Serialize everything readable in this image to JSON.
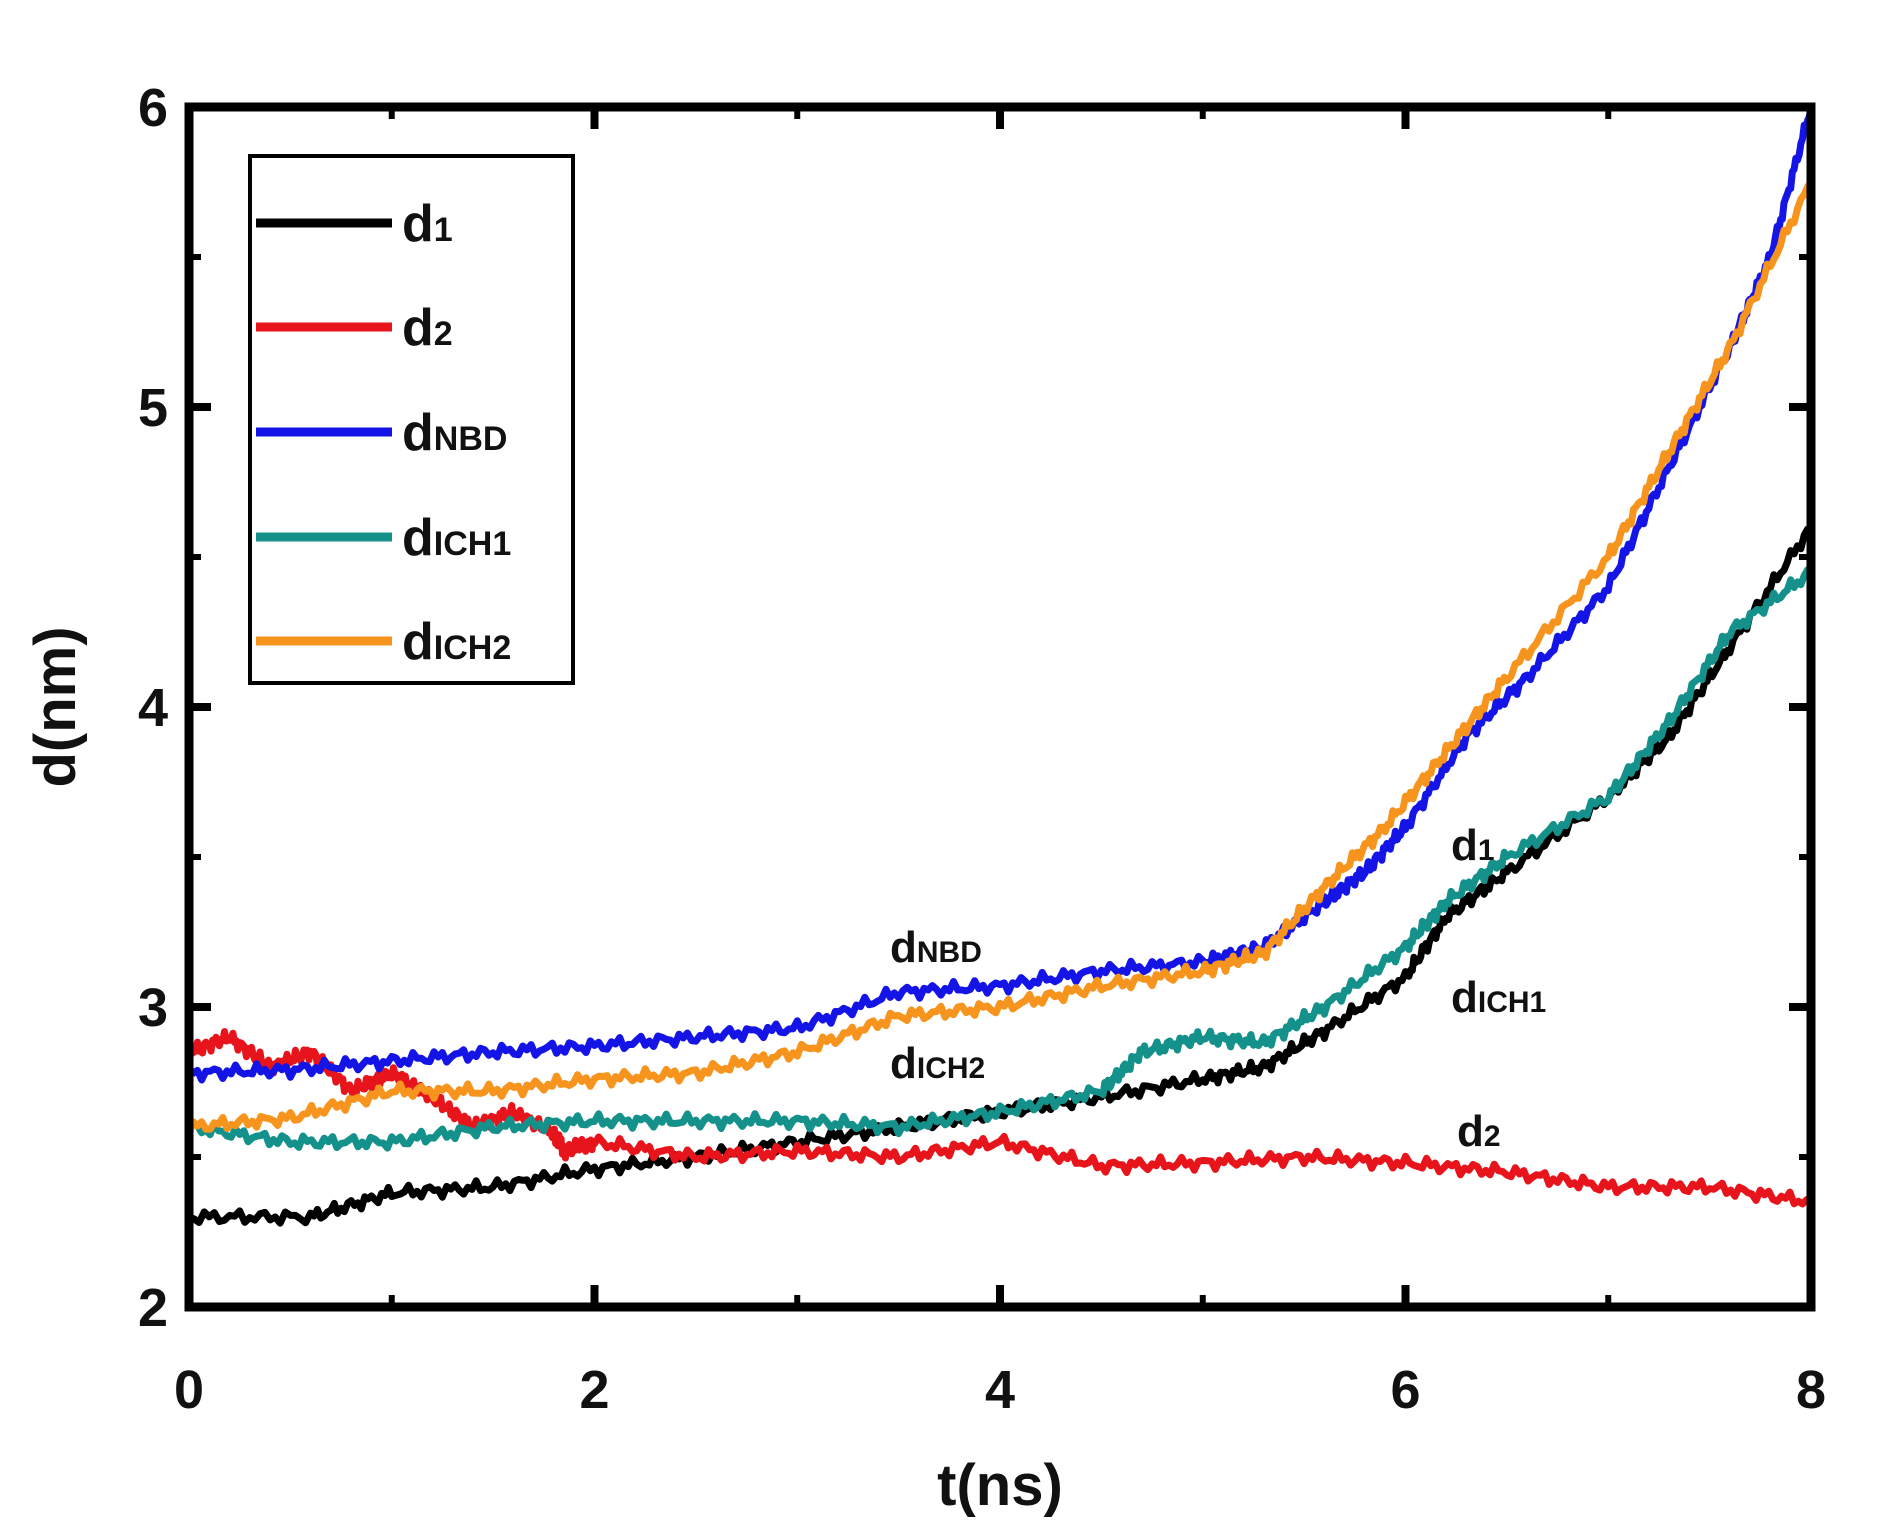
{
  "chart_data": {
    "type": "line",
    "title": "",
    "xlabel": "t(ns)",
    "ylabel": "d(nm)",
    "xlim": [
      0,
      8
    ],
    "ylim": [
      2,
      6
    ],
    "xticks": [
      "0",
      "2",
      "4",
      "6",
      "8"
    ],
    "yticks": [
      "2",
      "3",
      "4",
      "5",
      "6"
    ],
    "xtick_values": [
      0,
      2,
      4,
      6,
      8
    ],
    "ytick_values": [
      2,
      3,
      4,
      5,
      6
    ],
    "grid": false,
    "legend_position": "top-left",
    "series": [
      {
        "name": "d",
        "sub": "1",
        "color": "#000000",
        "x": [
          0,
          0.6,
          1,
          1.5,
          2,
          2.5,
          3,
          3.5,
          4,
          4.5,
          5,
          5.3,
          5.6,
          6,
          6.2,
          6.5,
          7,
          7.3,
          7.6,
          8
        ],
        "y": [
          2.3,
          2.3,
          2.38,
          2.4,
          2.46,
          2.5,
          2.55,
          2.6,
          2.65,
          2.7,
          2.76,
          2.8,
          2.92,
          3.1,
          3.3,
          3.45,
          3.7,
          3.9,
          4.2,
          4.6
        ]
      },
      {
        "name": "d",
        "sub": "2",
        "color": "#e8141b",
        "x": [
          0,
          0.2,
          0.4,
          0.6,
          0.8,
          1,
          1.2,
          1.4,
          1.6,
          1.8,
          1.85,
          2,
          2.5,
          3,
          3.5,
          4,
          4.5,
          5,
          5.5,
          6,
          6.5,
          7,
          7.5,
          8
        ],
        "y": [
          2.85,
          2.9,
          2.8,
          2.85,
          2.72,
          2.78,
          2.7,
          2.6,
          2.65,
          2.58,
          2.52,
          2.55,
          2.5,
          2.52,
          2.5,
          2.55,
          2.47,
          2.48,
          2.5,
          2.48,
          2.45,
          2.4,
          2.4,
          2.35
        ]
      },
      {
        "name": "d",
        "sub": "NBD",
        "color": "#1414e6",
        "x": [
          0,
          0.5,
          1,
          1.5,
          2,
          2.5,
          3,
          3.5,
          4,
          4.5,
          5,
          5.3,
          5.6,
          5.8,
          6,
          6.3,
          6.6,
          7,
          7.3,
          7.6,
          7.8,
          8
        ],
        "y": [
          2.78,
          2.79,
          2.82,
          2.85,
          2.87,
          2.9,
          2.93,
          3.05,
          3.07,
          3.12,
          3.15,
          3.2,
          3.35,
          3.45,
          3.6,
          3.9,
          4.1,
          4.4,
          4.8,
          5.2,
          5.5,
          6.0
        ]
      },
      {
        "name": "d",
        "sub": "ICH1",
        "color": "#13918a",
        "x": [
          0,
          0.5,
          1,
          1.5,
          2,
          2.5,
          3,
          3.5,
          4,
          4.5,
          4.7,
          5,
          5.3,
          5.6,
          6,
          6.2,
          6.5,
          7,
          7.3,
          7.6,
          8
        ],
        "y": [
          2.6,
          2.55,
          2.55,
          2.6,
          2.62,
          2.62,
          2.62,
          2.6,
          2.65,
          2.72,
          2.85,
          2.9,
          2.88,
          3.0,
          3.2,
          3.35,
          3.5,
          3.7,
          3.95,
          4.25,
          4.45
        ]
      },
      {
        "name": "d",
        "sub": "ICH2",
        "color": "#f7941d",
        "x": [
          0,
          0.5,
          1,
          1.5,
          2,
          2.5,
          3,
          3.5,
          4,
          4.5,
          5,
          5.3,
          5.6,
          5.9,
          6.2,
          6.5,
          7,
          7.3,
          7.6,
          8
        ],
        "y": [
          2.6,
          2.63,
          2.72,
          2.72,
          2.76,
          2.78,
          2.85,
          2.97,
          3.0,
          3.07,
          3.12,
          3.18,
          3.4,
          3.6,
          3.85,
          4.1,
          4.5,
          4.85,
          5.2,
          5.75
        ]
      }
    ],
    "annotations": [
      {
        "text": "d",
        "sub": "1"
      },
      {
        "text": "d",
        "sub": "ICH1"
      },
      {
        "text": "d",
        "sub": "2"
      },
      {
        "text": "d",
        "sub": "NBD"
      },
      {
        "text": "d",
        "sub": "ICH2"
      }
    ]
  }
}
